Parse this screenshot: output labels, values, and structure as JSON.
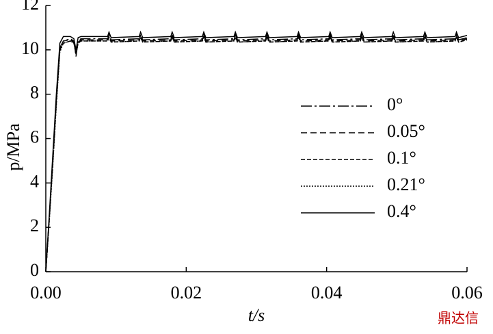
{
  "chart_data": {
    "type": "line",
    "x_label": "t/s",
    "y_label": "p/MPa",
    "watermark": "鼎达信",
    "xlim": [
      0,
      0.06
    ],
    "ylim": [
      0,
      12
    ],
    "xticks": [
      {
        "value": 0,
        "label": "0.00"
      },
      {
        "value": 0.02,
        "label": "0.02"
      },
      {
        "value": 0.04,
        "label": "0.04"
      },
      {
        "value": 0.06,
        "label": "0.06"
      }
    ],
    "yticks": [
      0,
      2,
      4,
      6,
      8,
      10,
      12
    ],
    "x": [
      0,
      0.0005,
      0.001,
      0.0015,
      0.002,
      0.0025,
      0.0035,
      0.004,
      0.0043,
      0.0046,
      0.005,
      0.0088,
      0.009,
      0.0093,
      0.0133,
      0.0135,
      0.0138,
      0.0178,
      0.018,
      0.0183,
      0.0223,
      0.0225,
      0.0228,
      0.0268,
      0.027,
      0.0273,
      0.0313,
      0.0315,
      0.0318,
      0.0358,
      0.036,
      0.0363,
      0.0403,
      0.0405,
      0.0408,
      0.0448,
      0.045,
      0.0453,
      0.0493,
      0.0495,
      0.0498,
      0.0538,
      0.054,
      0.0543,
      0.0583,
      0.0585,
      0.0588,
      0.06
    ],
    "series": [
      {
        "name": "0°",
        "color": "#000000",
        "style": "dashdot",
        "values": [
          0,
          2.5,
          5.1,
          7.8,
          10.1,
          10.4,
          10.5,
          10.4,
          9.7,
          10.4,
          10.5,
          10.5,
          10.7,
          10.45,
          10.5,
          10.7,
          10.45,
          10.5,
          10.7,
          10.45,
          10.5,
          10.7,
          10.45,
          10.5,
          10.7,
          10.45,
          10.5,
          10.7,
          10.45,
          10.5,
          10.7,
          10.45,
          10.5,
          10.7,
          10.45,
          10.5,
          10.7,
          10.45,
          10.5,
          10.7,
          10.45,
          10.5,
          10.7,
          10.45,
          10.5,
          10.7,
          10.45,
          10.55
        ]
      },
      {
        "name": "0.05°",
        "color": "#000000",
        "style": "dashed",
        "values": [
          0,
          2.4,
          5.0,
          7.7,
          10.0,
          10.4,
          10.45,
          10.35,
          9.8,
          10.35,
          10.45,
          10.45,
          10.65,
          10.4,
          10.45,
          10.65,
          10.4,
          10.45,
          10.65,
          10.4,
          10.45,
          10.65,
          10.4,
          10.45,
          10.65,
          10.4,
          10.45,
          10.65,
          10.4,
          10.45,
          10.65,
          10.4,
          10.45,
          10.65,
          10.4,
          10.45,
          10.65,
          10.4,
          10.45,
          10.65,
          10.4,
          10.45,
          10.65,
          10.4,
          10.45,
          10.65,
          10.4,
          10.5
        ]
      },
      {
        "name": "0.1°",
        "color": "#000000",
        "style": "shortdash",
        "values": [
          0,
          2.4,
          4.9,
          7.6,
          10.0,
          10.3,
          10.4,
          10.3,
          9.8,
          10.3,
          10.4,
          10.4,
          10.6,
          10.35,
          10.4,
          10.6,
          10.35,
          10.4,
          10.6,
          10.35,
          10.4,
          10.6,
          10.35,
          10.4,
          10.6,
          10.35,
          10.4,
          10.6,
          10.35,
          10.4,
          10.6,
          10.35,
          10.4,
          10.6,
          10.35,
          10.4,
          10.6,
          10.35,
          10.4,
          10.6,
          10.35,
          10.4,
          10.6,
          10.35,
          10.4,
          10.6,
          10.35,
          10.45
        ]
      },
      {
        "name": "0.21°",
        "color": "#000000",
        "style": "dotted",
        "values": [
          0,
          2.3,
          4.8,
          7.5,
          9.9,
          10.3,
          10.4,
          10.3,
          9.9,
          10.3,
          10.4,
          10.4,
          10.55,
          10.35,
          10.4,
          10.55,
          10.35,
          10.4,
          10.55,
          10.35,
          10.4,
          10.55,
          10.35,
          10.4,
          10.55,
          10.35,
          10.4,
          10.55,
          10.35,
          10.4,
          10.55,
          10.35,
          10.4,
          10.55,
          10.35,
          10.4,
          10.55,
          10.35,
          10.4,
          10.55,
          10.35,
          10.4,
          10.55,
          10.35,
          10.4,
          10.55,
          10.35,
          10.45
        ]
      },
      {
        "name": "0.4°",
        "color": "#000000",
        "style": "solid",
        "values": [
          0,
          2.6,
          5.3,
          8.0,
          10.3,
          10.6,
          10.6,
          10.5,
          10.0,
          10.55,
          10.6,
          10.6,
          10.8,
          10.55,
          10.6,
          10.8,
          10.55,
          10.6,
          10.8,
          10.55,
          10.6,
          10.8,
          10.55,
          10.6,
          10.8,
          10.55,
          10.6,
          10.8,
          10.55,
          10.6,
          10.8,
          10.55,
          10.6,
          10.8,
          10.55,
          10.6,
          10.8,
          10.55,
          10.6,
          10.8,
          10.55,
          10.6,
          10.8,
          10.55,
          10.6,
          10.8,
          10.55,
          10.65
        ]
      }
    ]
  }
}
